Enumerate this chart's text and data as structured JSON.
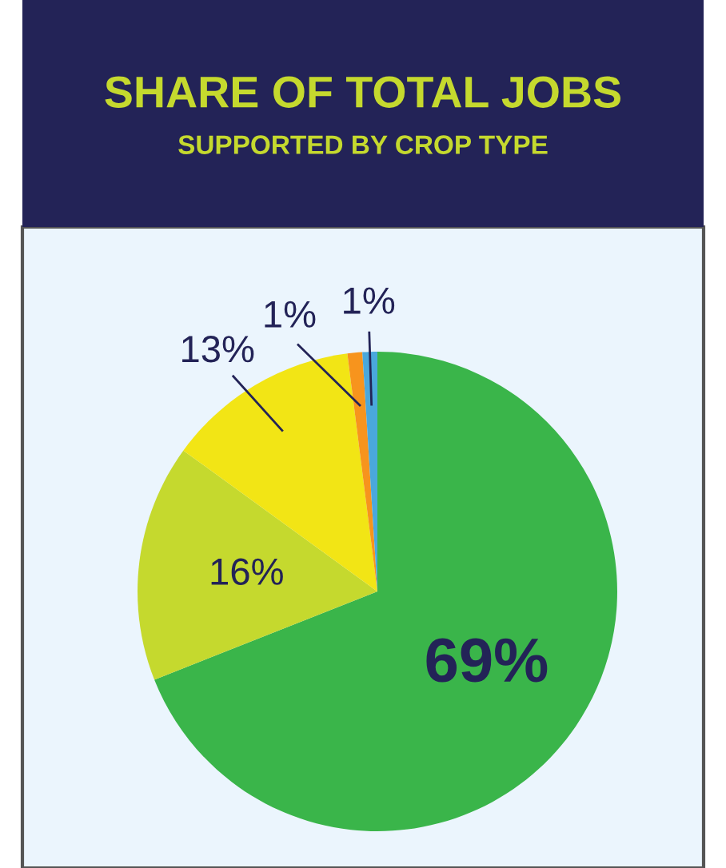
{
  "chart_data": {
    "type": "pie",
    "title": "SHARE OF TOTAL JOBS",
    "subtitle": "SUPPORTED BY CROP TYPE",
    "categories": [
      null,
      null,
      null,
      null,
      null
    ],
    "values": [
      69,
      16,
      13,
      1,
      1
    ],
    "colors": [
      "#3ab54a",
      "#c5d92e",
      "#f2e515",
      "#f7941d",
      "#4aa8dc"
    ],
    "value_labels": [
      "69%",
      "16%",
      "13%",
      "1%",
      "1%"
    ],
    "legend": false
  }
}
